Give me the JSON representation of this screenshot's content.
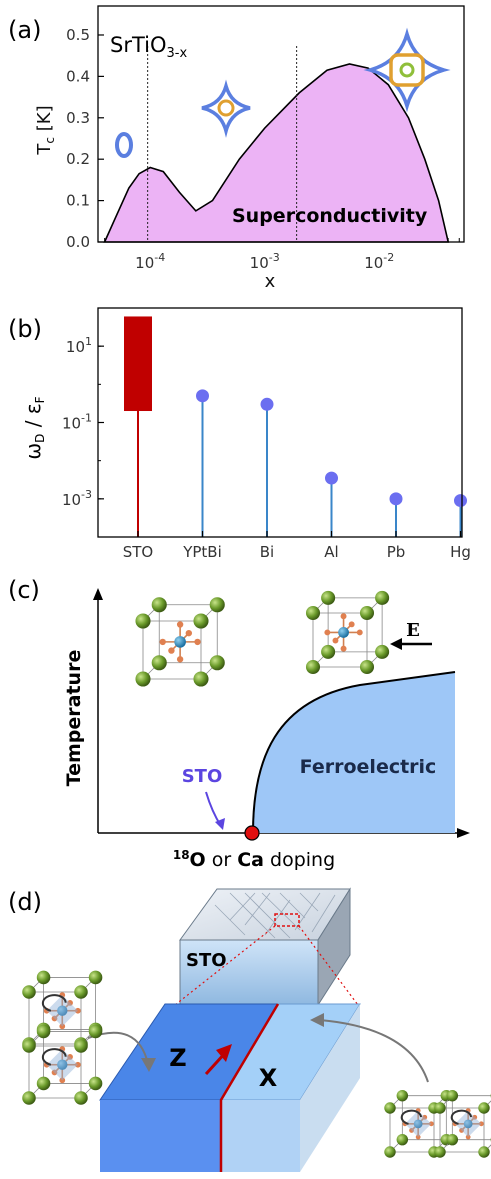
{
  "figure": {
    "panels": {
      "a": {
        "label": "(a)",
        "material_prefix": "SrTiO",
        "material_subscript": "3-x",
        "region_label": "Superconductivity"
      },
      "b": {
        "label": "(b)"
      },
      "c": {
        "label": "(c)",
        "ylabel": "Temperature",
        "sto_label": "STO",
        "phase_label": "Ferroelectric",
        "field_label": "E",
        "xlabel_sup": "18",
        "xlabel_o": "O",
        "xlabel_or": " or ",
        "xlabel_ca": "Ca",
        "xlabel_rest": " doping"
      },
      "d": {
        "label": "(d)",
        "block_label": "STO",
        "domain_left": "Z",
        "domain_right": "X"
      }
    }
  },
  "colors": {
    "superconducting_fill": "#ecb3f5",
    "sto_bar": "#c00000",
    "stem": "#3a86c9",
    "marker": "#6b6ef0",
    "ferroelectric_fill": "#9ec7f7",
    "sto_text": "#5b45e0",
    "fermi_blue": "#5b7fe0",
    "fermi_orange": "#e0a030",
    "fermi_green": "#8fbf3a"
  },
  "chart_data": [
    {
      "type": "area",
      "xlabel": "x",
      "ylabel": "T_c [K]",
      "x_scale": "log",
      "xlim": [
        3.5e-05,
        0.055
      ],
      "ylim": [
        0,
        0.57
      ],
      "x_ticks": [
        {
          "value": 0.0001,
          "base": "10",
          "exp": "-4"
        },
        {
          "value": 0.001,
          "base": "10",
          "exp": "-3"
        },
        {
          "value": 0.01,
          "base": "10",
          "exp": "-2"
        }
      ],
      "y_ticks": [
        {
          "value": 0.0,
          "label": "0.0"
        },
        {
          "value": 0.1,
          "label": "0.1"
        },
        {
          "value": 0.2,
          "label": "0.2"
        },
        {
          "value": 0.3,
          "label": "0.3"
        },
        {
          "value": 0.4,
          "label": "0.4"
        },
        {
          "value": 0.5,
          "label": "0.5"
        }
      ],
      "dashed_lines_x": [
        9.5e-05,
        0.0019
      ],
      "points": [
        {
          "x": 4e-05,
          "y": 0.0
        },
        {
          "x": 5e-05,
          "y": 0.06
        },
        {
          "x": 6.5e-05,
          "y": 0.13
        },
        {
          "x": 8e-05,
          "y": 0.165
        },
        {
          "x": 0.0001,
          "y": 0.18
        },
        {
          "x": 0.00013,
          "y": 0.17
        },
        {
          "x": 0.00018,
          "y": 0.12
        },
        {
          "x": 0.00025,
          "y": 0.075
        },
        {
          "x": 0.00035,
          "y": 0.1
        },
        {
          "x": 0.0006,
          "y": 0.2
        },
        {
          "x": 0.001,
          "y": 0.275
        },
        {
          "x": 0.002,
          "y": 0.36
        },
        {
          "x": 0.0035,
          "y": 0.415
        },
        {
          "x": 0.0055,
          "y": 0.43
        },
        {
          "x": 0.008,
          "y": 0.42
        },
        {
          "x": 0.012,
          "y": 0.38
        },
        {
          "x": 0.018,
          "y": 0.3
        },
        {
          "x": 0.025,
          "y": 0.2
        },
        {
          "x": 0.033,
          "y": 0.1
        },
        {
          "x": 0.04,
          "y": 0.0
        }
      ]
    },
    {
      "type": "bar",
      "ylabel": "ω_D / ε_F",
      "y_scale": "log",
      "ylim": [
        0.0001,
        100
      ],
      "y_ticks": [
        {
          "value": 0.001,
          "base": "10",
          "exp": "-3"
        },
        {
          "value": 0.1,
          "base": "10",
          "exp": "-1"
        },
        {
          "value": 10,
          "base": "10",
          "exp": "1"
        }
      ],
      "categories": [
        "STO",
        "YPtBi",
        "Bi",
        "Al",
        "Pb",
        "Hg"
      ],
      "sto_range": [
        0.2,
        60
      ],
      "values": [
        null,
        0.5,
        0.3,
        0.0035,
        0.001,
        0.0009
      ]
    }
  ]
}
